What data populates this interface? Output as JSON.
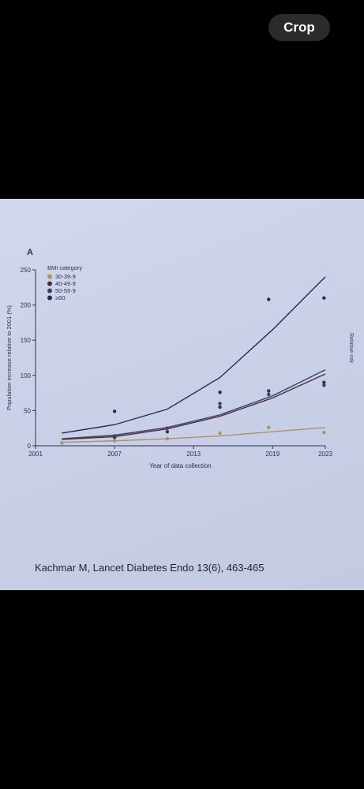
{
  "toolbar": {
    "crop_label": "Crop"
  },
  "figure": {
    "panel_letter": "A",
    "caption": "Kachmar M, Lancet Diabetes Endo 13(6), 463-465",
    "side_label_fragment": "Relative risk"
  },
  "chart_data": {
    "type": "line",
    "title": "",
    "xlabel": "Year of data collection",
    "ylabel": "Population increase relative to 2001 (%)",
    "legend_title": "BMI category",
    "legend_placement": "top-left",
    "xlim": [
      2001,
      2023
    ],
    "ylim": [
      0,
      250
    ],
    "x_ticks": [
      2001,
      2007,
      2013,
      2019,
      2023
    ],
    "y_ticks": [
      0,
      50,
      100,
      150,
      200,
      250
    ],
    "grid": false,
    "series": [
      {
        "name": "30-39·9",
        "color": "#a89468",
        "line": {
          "x": [
            2003,
            2007,
            2011,
            2015,
            2019,
            2023
          ],
          "y": [
            5,
            7,
            10,
            14,
            20,
            26
          ]
        },
        "points": {
          "x": [
            2003,
            2007,
            2011,
            2015,
            2018.7,
            2022.9
          ],
          "y": [
            4,
            7,
            10,
            18,
            26,
            19
          ]
        }
      },
      {
        "name": "40-49·9",
        "color": "#4a2c38",
        "line": {
          "x": [
            2003,
            2007,
            2011,
            2015,
            2019,
            2023
          ],
          "y": [
            9,
            13,
            24,
            42,
            68,
            102
          ]
        },
        "points": {
          "x": [
            2007,
            2011,
            2015,
            2018.7,
            2022.9
          ],
          "y": [
            12,
            20,
            55,
            78,
            90
          ]
        }
      },
      {
        "name": "50-59·9",
        "color": "#3a3e6e",
        "line": {
          "x": [
            2003,
            2007,
            2011,
            2015,
            2019,
            2023
          ],
          "y": [
            10,
            15,
            26,
            44,
            71,
            108
          ]
        },
        "points": {
          "x": [
            2007,
            2011,
            2015,
            2018.7,
            2022.9
          ],
          "y": [
            14,
            25,
            60,
            73,
            86
          ]
        }
      },
      {
        "name": "≥60",
        "color": "#262a52",
        "line": {
          "x": [
            2003,
            2007,
            2011,
            2015,
            2019,
            2023
          ],
          "y": [
            18,
            30,
            52,
            97,
            165,
            240
          ]
        },
        "points": {
          "x": [
            2007,
            2015,
            2018.7,
            2022.9
          ],
          "y": [
            49,
            76,
            208,
            210
          ]
        }
      }
    ]
  }
}
